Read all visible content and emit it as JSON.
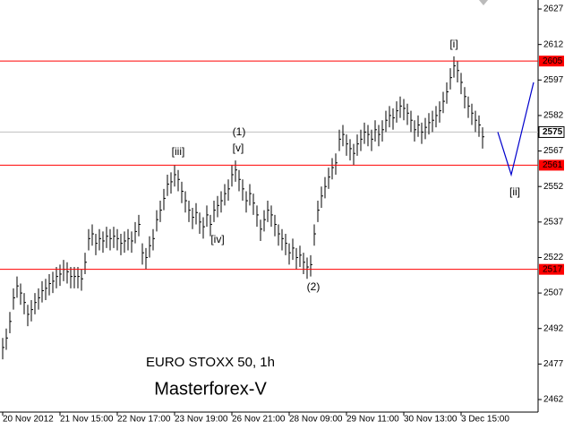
{
  "chart_data": {
    "type": "ohlc",
    "title": "EURO STOXX 50, 1h",
    "subtitle": "Masterforex-V",
    "color": "#000000",
    "subtitle_color": "#ff0000",
    "high": [
      2488,
      2492,
      2499,
      2509,
      2514,
      2511,
      2507,
      2502,
      2504,
      2507,
      2509,
      2512,
      2513,
      2515,
      2516,
      2518,
      2519,
      2521,
      2520,
      2518,
      2518,
      2518,
      2517,
      2524,
      2534,
      2536,
      2532,
      2534,
      2533,
      2535,
      2534,
      2535,
      2534,
      2532,
      2533,
      2534,
      2533,
      2537,
      2540,
      2528,
      2526,
      2531,
      2534,
      2542,
      2546,
      2551,
      2557,
      2558,
      2561,
      2559,
      2554,
      2550,
      2546,
      2543,
      2545,
      2541,
      2539,
      2544,
      2540,
      2546,
      2548,
      2550,
      2553,
      2555,
      2561,
      2563,
      2559,
      2555,
      2550,
      2553,
      2549,
      2544,
      2538,
      2542,
      2546,
      2544,
      2540,
      2536,
      2534,
      2532,
      2528,
      2530,
      2526,
      2527,
      2524,
      2522,
      2523,
      2536,
      2546,
      2552,
      2556,
      2560,
      2564,
      2566,
      2576,
      2578,
      2574,
      2572,
      2570,
      2574,
      2576,
      2579,
      2578,
      2576,
      2580,
      2578,
      2580,
      2584,
      2586,
      2585,
      2588,
      2590,
      2589,
      2587,
      2584,
      2580,
      2582,
      2579,
      2581,
      2583,
      2584,
      2586,
      2588,
      2592,
      2596,
      2602,
      2607,
      2605,
      2600,
      2594,
      2590,
      2587,
      2584,
      2582,
      2577
    ],
    "low": [
      2479,
      2483,
      2490,
      2500,
      2505,
      2502,
      2498,
      2493,
      2495,
      2498,
      2500,
      2503,
      2504,
      2506,
      2507,
      2509,
      2510,
      2512,
      2511,
      2509,
      2509,
      2509,
      2508,
      2515,
      2525,
      2527,
      2523,
      2525,
      2524,
      2526,
      2525,
      2526,
      2525,
      2523,
      2524,
      2525,
      2524,
      2528,
      2531,
      2519,
      2517,
      2522,
      2525,
      2533,
      2537,
      2542,
      2548,
      2549,
      2552,
      2550,
      2545,
      2541,
      2537,
      2534,
      2536,
      2532,
      2530,
      2535,
      2531,
      2537,
      2539,
      2541,
      2544,
      2546,
      2552,
      2554,
      2550,
      2546,
      2541,
      2544,
      2540,
      2535,
      2529,
      2533,
      2537,
      2535,
      2531,
      2527,
      2525,
      2523,
      2519,
      2521,
      2517,
      2518,
      2515,
      2513,
      2514,
      2527,
      2537,
      2543,
      2547,
      2551,
      2555,
      2557,
      2567,
      2569,
      2565,
      2563,
      2561,
      2565,
      2567,
      2570,
      2569,
      2567,
      2571,
      2569,
      2571,
      2575,
      2577,
      2576,
      2579,
      2581,
      2580,
      2578,
      2575,
      2571,
      2573,
      2570,
      2572,
      2574,
      2575,
      2577,
      2579,
      2583,
      2587,
      2593,
      2598,
      2596,
      2591,
      2585,
      2581,
      2578,
      2575,
      2573,
      2568
    ],
    "close": [
      2484,
      2488,
      2495,
      2505,
      2510,
      2507,
      2503,
      2498,
      2500,
      2503,
      2505,
      2508,
      2509,
      2511,
      2512,
      2514,
      2515,
      2517,
      2516,
      2514,
      2514,
      2514,
      2513,
      2520,
      2530,
      2532,
      2528,
      2530,
      2529,
      2531,
      2530,
      2531,
      2530,
      2528,
      2529,
      2530,
      2529,
      2533,
      2536,
      2524,
      2522,
      2527,
      2530,
      2538,
      2542,
      2547,
      2553,
      2554,
      2557,
      2555,
      2550,
      2546,
      2542,
      2539,
      2541,
      2537,
      2535,
      2540,
      2536,
      2542,
      2544,
      2546,
      2549,
      2551,
      2557,
      2559,
      2555,
      2551,
      2546,
      2549,
      2545,
      2540,
      2534,
      2538,
      2542,
      2540,
      2536,
      2532,
      2530,
      2528,
      2524,
      2526,
      2522,
      2523,
      2520,
      2518,
      2519,
      2532,
      2542,
      2548,
      2552,
      2556,
      2560,
      2562,
      2572,
      2574,
      2570,
      2568,
      2566,
      2570,
      2572,
      2575,
      2574,
      2572,
      2576,
      2574,
      2576,
      2580,
      2582,
      2581,
      2584,
      2586,
      2585,
      2583,
      2580,
      2576,
      2578,
      2575,
      2577,
      2579,
      2580,
      2582,
      2584,
      2588,
      2592,
      2598,
      2603,
      2601,
      2596,
      2590,
      2586,
      2583,
      2580,
      2578,
      2573
    ],
    "xlim": [
      -0.75,
      149.5
    ],
    "ylim": [
      2456.7,
      2630.8
    ],
    "xticks": [
      {
        "value": 0,
        "label": "20 Nov 2012"
      },
      {
        "value": 16,
        "label": "21 Nov 15:00"
      },
      {
        "value": 32,
        "label": "22 Nov 17:00"
      },
      {
        "value": 48,
        "label": "23 Nov 19:00"
      },
      {
        "value": 64,
        "label": "26 Nov 21:00"
      },
      {
        "value": 80,
        "label": "28 Nov 09:00"
      },
      {
        "value": 96,
        "label": "29 Nov 11:00"
      },
      {
        "value": 112,
        "label": "30 Nov 13:00"
      },
      {
        "value": 128,
        "label": "3 Dec 15:00"
      }
    ],
    "yticks": [
      2627,
      2612,
      2597,
      2582,
      2567,
      2552,
      2537,
      2522,
      2507,
      2492,
      2477,
      2462
    ],
    "levels": [
      2605,
      2561,
      2517
    ],
    "level_color": "#ff0000",
    "current_price": 2575,
    "projection": {
      "color": "#0000cc",
      "x": [
        138.25,
        142,
        148.25
      ],
      "values": [
        2575,
        2557,
        2596
      ]
    },
    "annotations": [
      "[i]",
      "(1)",
      "[v]",
      "[iii]",
      "[iv]",
      "(2)",
      "[ii]"
    ]
  }
}
